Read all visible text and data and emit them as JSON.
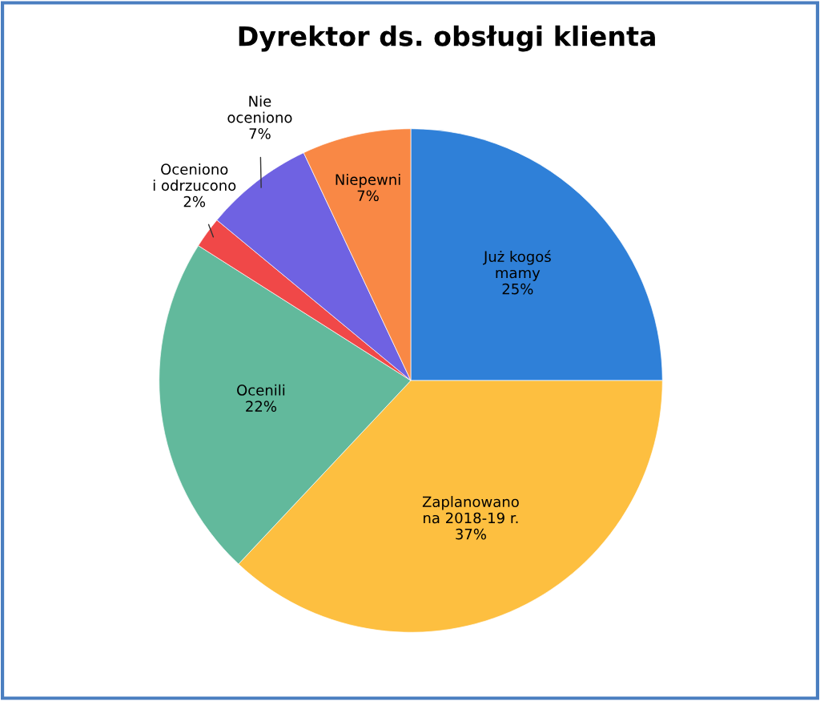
{
  "chart_data": {
    "type": "pie",
    "title": "Dyrektor ds. obsługi klienta",
    "categories": [
      "Już kogoś\nmamy",
      "Zaplanowano\nna 2018-19 r.",
      "Ocenili",
      "Oceniono\ni odrzucono",
      "Nie\noceniono",
      "Niepewni"
    ],
    "values": [
      25,
      37,
      22,
      2,
      7,
      7
    ],
    "value_labels": [
      "25%",
      "37%",
      "22%",
      "2%",
      "7%",
      "7%"
    ],
    "colors": [
      "#2f80d8",
      "#fdbf40",
      "#62b99c",
      "#f04848",
      "#6f62e2",
      "#f98845"
    ]
  }
}
